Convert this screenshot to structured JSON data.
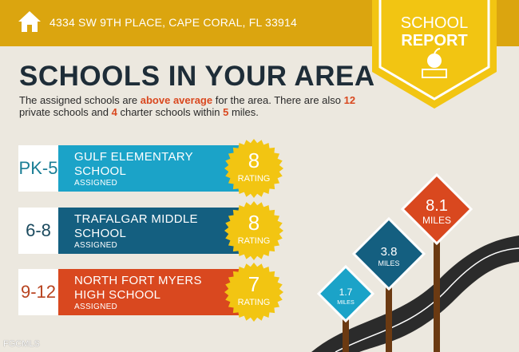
{
  "header": {
    "address": "4334 SW 9TH PLACE, CAPE CORAL, FL 33914",
    "icon": "house-icon"
  },
  "badge": {
    "line1": "SCHOOL",
    "line2": "REPORT",
    "icon": "apple-books-icon"
  },
  "title": "SCHOOLS IN YOUR AREA",
  "description": {
    "p1": "The assigned schools are ",
    "h1": "above average",
    "p2": " for the area. There are also ",
    "h2": "12",
    "p3": " private schools and ",
    "h3": "4",
    "p4": " charter schools within ",
    "h4": "5",
    "p5": " miles."
  },
  "schools": [
    {
      "grade": "PK-5",
      "name1": "GULF ELEMENTARY",
      "name2": "SCHOOL",
      "status": "ASSIGNED",
      "rating": "8",
      "rating_label": "RATING",
      "color": "#1ba3c8",
      "grade_color": "#1a7e95"
    },
    {
      "grade": "6-8",
      "name1": "TRAFALGAR MIDDLE",
      "name2": "SCHOOL",
      "status": "ASSIGNED",
      "rating": "8",
      "rating_label": "RATING",
      "color": "#145f80",
      "grade_color": "#1b4a5e"
    },
    {
      "grade": "9-12",
      "name1": "NORTH FORT MYERS",
      "name2": "HIGH SCHOOL",
      "status": "ASSIGNED",
      "rating": "7",
      "rating_label": "RATING",
      "color": "#d9481f",
      "grade_color": "#b8431f"
    }
  ],
  "signs": [
    {
      "value": "1.7",
      "unit": "MILES",
      "color": "#1ba3c8"
    },
    {
      "value": "3.8",
      "unit": "MILES",
      "color": "#145f80"
    },
    {
      "value": "8.1",
      "unit": "MILES",
      "color": "#d9481f"
    }
  ],
  "watermark": "FGCMLS",
  "colors": {
    "band": "#dba50f",
    "badge": "#f2c512",
    "seal": "#f2c512",
    "background": "#ece8df"
  }
}
